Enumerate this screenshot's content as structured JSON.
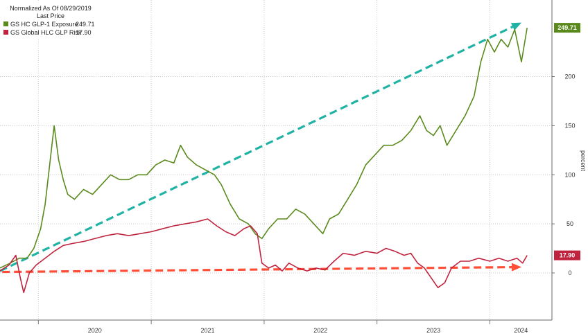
{
  "chart_data": {
    "type": "line",
    "legend": {
      "header_line1": "Normalized As Of 08/29/2019",
      "header_line2": "Last Price",
      "placement": "top-left"
    },
    "ylabel": "percent",
    "ylim": [
      -48,
      278
    ],
    "y_ticks": [
      "0",
      "50",
      "100",
      "150",
      "200"
    ],
    "y_tick_values": [
      0,
      50,
      100,
      150,
      200
    ],
    "xlim": [
      2019.66,
      2024.55
    ],
    "x_ticks": [
      "2020",
      "2021",
      "2022",
      "2023",
      "2024"
    ],
    "x_tick_values": [
      2020.0,
      2021.0,
      2022.0,
      2023.0,
      2024.0
    ],
    "grid": true,
    "series": [
      {
        "name": "GS HC GLP-1 Exposure",
        "last_value": "249.71",
        "color": "#5a8a1c",
        "points": [
          [
            2019.66,
            5
          ],
          [
            2019.75,
            10
          ],
          [
            2019.83,
            15
          ],
          [
            2019.9,
            15
          ],
          [
            2019.96,
            25
          ],
          [
            2020.02,
            45
          ],
          [
            2020.06,
            70
          ],
          [
            2020.1,
            110
          ],
          [
            2020.14,
            150
          ],
          [
            2020.18,
            115
          ],
          [
            2020.22,
            95
          ],
          [
            2020.26,
            80
          ],
          [
            2020.32,
            75
          ],
          [
            2020.4,
            85
          ],
          [
            2020.48,
            80
          ],
          [
            2020.56,
            90
          ],
          [
            2020.64,
            100
          ],
          [
            2020.72,
            95
          ],
          [
            2020.8,
            95
          ],
          [
            2020.88,
            100
          ],
          [
            2020.96,
            100
          ],
          [
            2021.04,
            110
          ],
          [
            2021.12,
            115
          ],
          [
            2021.2,
            112
          ],
          [
            2021.26,
            130
          ],
          [
            2021.32,
            118
          ],
          [
            2021.4,
            110
          ],
          [
            2021.48,
            105
          ],
          [
            2021.56,
            100
          ],
          [
            2021.62,
            90
          ],
          [
            2021.7,
            70
          ],
          [
            2021.78,
            55
          ],
          [
            2021.86,
            50
          ],
          [
            2021.92,
            40
          ],
          [
            2021.98,
            35
          ],
          [
            2022.04,
            45
          ],
          [
            2022.12,
            55
          ],
          [
            2022.2,
            55
          ],
          [
            2022.28,
            65
          ],
          [
            2022.36,
            60
          ],
          [
            2022.44,
            50
          ],
          [
            2022.52,
            40
          ],
          [
            2022.58,
            55
          ],
          [
            2022.66,
            60
          ],
          [
            2022.74,
            75
          ],
          [
            2022.82,
            90
          ],
          [
            2022.9,
            110
          ],
          [
            2022.98,
            120
          ],
          [
            2023.06,
            130
          ],
          [
            2023.14,
            130
          ],
          [
            2023.22,
            135
          ],
          [
            2023.3,
            145
          ],
          [
            2023.38,
            160
          ],
          [
            2023.44,
            145
          ],
          [
            2023.5,
            140
          ],
          [
            2023.56,
            150
          ],
          [
            2023.62,
            130
          ],
          [
            2023.7,
            145
          ],
          [
            2023.78,
            160
          ],
          [
            2023.86,
            180
          ],
          [
            2023.92,
            215
          ],
          [
            2023.98,
            238
          ],
          [
            2024.04,
            225
          ],
          [
            2024.1,
            238
          ],
          [
            2024.16,
            230
          ],
          [
            2024.22,
            248
          ],
          [
            2024.28,
            215
          ],
          [
            2024.33,
            249.71
          ]
        ]
      },
      {
        "name": "GS Global HLC GLP Risk",
        "last_value": "17.90",
        "color": "#c0233e",
        "points": [
          [
            2019.66,
            2
          ],
          [
            2019.74,
            8
          ],
          [
            2019.8,
            18
          ],
          [
            2019.84,
            -5
          ],
          [
            2019.87,
            -20
          ],
          [
            2019.92,
            0
          ],
          [
            2019.98,
            8
          ],
          [
            2020.06,
            15
          ],
          [
            2020.14,
            22
          ],
          [
            2020.22,
            28
          ],
          [
            2020.3,
            30
          ],
          [
            2020.4,
            32
          ],
          [
            2020.5,
            35
          ],
          [
            2020.6,
            38
          ],
          [
            2020.7,
            40
          ],
          [
            2020.8,
            38
          ],
          [
            2020.9,
            40
          ],
          [
            2021.0,
            42
          ],
          [
            2021.1,
            45
          ],
          [
            2021.2,
            48
          ],
          [
            2021.3,
            50
          ],
          [
            2021.4,
            52
          ],
          [
            2021.5,
            55
          ],
          [
            2021.58,
            48
          ],
          [
            2021.66,
            42
          ],
          [
            2021.74,
            38
          ],
          [
            2021.82,
            45
          ],
          [
            2021.88,
            48
          ],
          [
            2021.94,
            40
          ],
          [
            2021.98,
            10
          ],
          [
            2022.04,
            5
          ],
          [
            2022.1,
            8
          ],
          [
            2022.16,
            2
          ],
          [
            2022.22,
            10
          ],
          [
            2022.3,
            5
          ],
          [
            2022.38,
            2
          ],
          [
            2022.46,
            5
          ],
          [
            2022.54,
            3
          ],
          [
            2022.62,
            12
          ],
          [
            2022.7,
            20
          ],
          [
            2022.8,
            18
          ],
          [
            2022.9,
            22
          ],
          [
            2023.0,
            20
          ],
          [
            2023.08,
            25
          ],
          [
            2023.16,
            22
          ],
          [
            2023.24,
            18
          ],
          [
            2023.3,
            20
          ],
          [
            2023.36,
            10
          ],
          [
            2023.42,
            5
          ],
          [
            2023.48,
            -5
          ],
          [
            2023.54,
            -15
          ],
          [
            2023.6,
            -10
          ],
          [
            2023.66,
            5
          ],
          [
            2023.74,
            12
          ],
          [
            2023.82,
            12
          ],
          [
            2023.9,
            15
          ],
          [
            2024.0,
            12
          ],
          [
            2024.08,
            15
          ],
          [
            2024.16,
            12
          ],
          [
            2024.24,
            15
          ],
          [
            2024.29,
            10
          ],
          [
            2024.33,
            17.9
          ]
        ]
      }
    ],
    "trend_arrows": [
      {
        "color": "#20b3a5",
        "from": [
          2019.66,
          2
        ],
        "to": [
          2024.28,
          255
        ]
      },
      {
        "color": "#ff4d36",
        "from": [
          2019.68,
          1
        ],
        "to": [
          2024.28,
          6
        ]
      }
    ]
  }
}
